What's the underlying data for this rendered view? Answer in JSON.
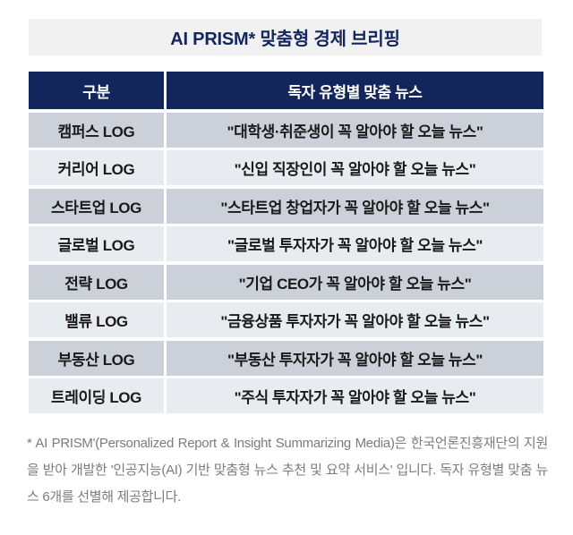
{
  "page": {
    "title": "AI PRISM* 맞춤형 경제 브리핑"
  },
  "table": {
    "headers": {
      "category": "구분",
      "news": "독자 유형별 맞춤 뉴스"
    },
    "rows": [
      {
        "category": "캠퍼스 LOG",
        "news": "\"대학생·취준생이 꼭 알아야 할 오늘 뉴스\""
      },
      {
        "category": "커리어 LOG",
        "news": "\"신입 직장인이 꼭 알아야 할 오늘 뉴스\""
      },
      {
        "category": "스타트업 LOG",
        "news": "\"스타트업 창업자가 꼭 알아야 할 오늘 뉴스\""
      },
      {
        "category": "글로벌 LOG",
        "news": "\"글로벌 투자자가 꼭 알아야 할 오늘 뉴스\""
      },
      {
        "category": "전략 LOG",
        "news": "\"기업 CEO가 꼭 알아야 할 오늘 뉴스\""
      },
      {
        "category": "밸류 LOG",
        "news": "\"금융상품 투자자가 꼭 알아야 할 오늘 뉴스\""
      },
      {
        "category": "부동산 LOG",
        "news": "\"부동산 투자자가 꼭 알아야 할 오늘 뉴스\""
      },
      {
        "category": "트레이딩 LOG",
        "news": "\"주식 투자자가 꼭 알아야 할 오늘 뉴스\""
      }
    ]
  },
  "footnote": {
    "text": "* AI PRISM'(Personalized Report & Insight Summarizing Media)은 한국언론진흥재단의 지원을 받아 개발한 '인공지능(AI) 기반 맞춤형 뉴스 추천 및 요약 서비스' 입니다. 독자 유형별 맞춤 뉴스 6개를 선별해 제공합니다."
  },
  "colors": {
    "navy_header": "#13265c",
    "title_band_bg": "#f1f1f2",
    "row_odd_bg": "#ccd1d9",
    "row_even_bg": "#e8ebef",
    "cell_text": "#1a1a1a",
    "footnote_text": "#7c7c7c",
    "header_text": "#ffffff"
  }
}
